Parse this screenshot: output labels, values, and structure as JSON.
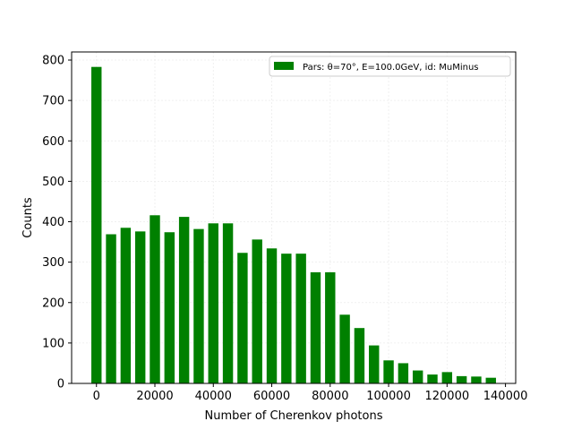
{
  "chart_data": {
    "type": "bar",
    "title": "",
    "xlabel": "Number of Cherenkov photons",
    "ylabel": "Counts",
    "xlim": [
      -8500,
      143500
    ],
    "ylim": [
      0,
      820
    ],
    "xticks": [
      0,
      20000,
      40000,
      60000,
      80000,
      100000,
      120000,
      140000
    ],
    "yticks": [
      0,
      100,
      200,
      300,
      400,
      500,
      600,
      700,
      800
    ],
    "grid": true,
    "legend_position": "top-right",
    "bar_color": "#008000",
    "bar_width": 3500,
    "series": [
      {
        "name": "Pars: θ=70°, E=100.0GeV, id: MuMinus",
        "x": [
          0,
          5000,
          10000,
          15000,
          20000,
          25000,
          30000,
          35000,
          40000,
          45000,
          50000,
          55000,
          60000,
          65000,
          70000,
          75000,
          80000,
          85000,
          90000,
          95000,
          100000,
          105000,
          110000,
          115000,
          120000,
          125000,
          130000,
          135000
        ],
        "values": [
          783,
          369,
          385,
          376,
          416,
          374,
          412,
          382,
          396,
          396,
          323,
          356,
          334,
          321,
          321,
          275,
          275,
          170,
          137,
          94,
          57,
          50,
          32,
          22,
          28,
          18,
          17,
          14
        ]
      }
    ]
  }
}
